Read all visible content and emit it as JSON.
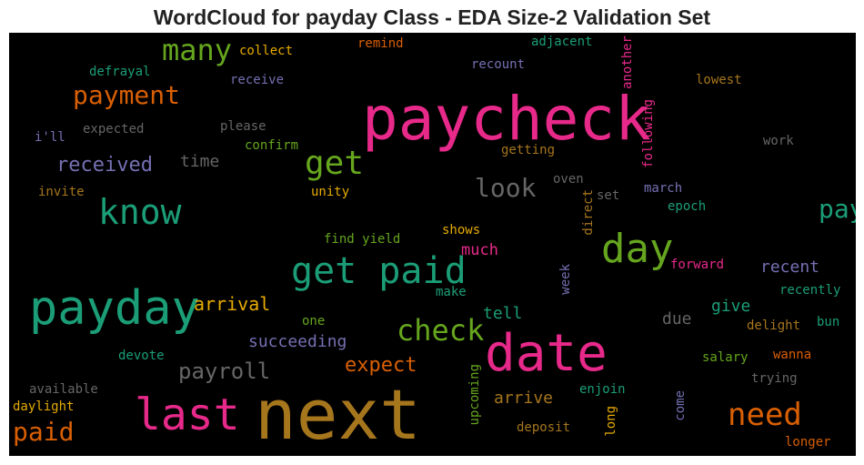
{
  "title": "WordCloud for payday Class - EDA Size-2 Validation Set",
  "colors": {
    "pink": "#e7298a",
    "gold": "#a6761d",
    "green": "#1b9e77",
    "olive": "#66a61e",
    "orange": "#d95f02",
    "purple": "#7570b3",
    "yellow": "#e6ab02",
    "gray": "#666666"
  },
  "words": [
    {
      "text": "paycheck",
      "color": "#e7298a"
    },
    {
      "text": "next",
      "color": "#a6761d"
    },
    {
      "text": "date",
      "color": "#e7298a"
    },
    {
      "text": "payday",
      "color": "#1b9e77"
    },
    {
      "text": "last",
      "color": "#e7298a"
    },
    {
      "text": "get paid",
      "color": "#1b9e77"
    },
    {
      "text": "day",
      "color": "#66a61e"
    },
    {
      "text": "know",
      "color": "#1b9e77"
    },
    {
      "text": "get",
      "color": "#66a61e"
    },
    {
      "text": "need",
      "color": "#d95f02"
    },
    {
      "text": "check",
      "color": "#66a61e"
    },
    {
      "text": "many",
      "color": "#66a61e"
    },
    {
      "text": "payment",
      "color": "#d95f02"
    },
    {
      "text": "paid",
      "color": "#d95f02"
    },
    {
      "text": "look",
      "color": "#666666"
    },
    {
      "text": "pay",
      "color": "#1b9e77"
    },
    {
      "text": "payroll",
      "color": "#666666"
    },
    {
      "text": "received",
      "color": "#7570b3"
    },
    {
      "text": "expect",
      "color": "#d95f02"
    },
    {
      "text": "arrival",
      "color": "#e6ab02"
    },
    {
      "text": "succeeding",
      "color": "#7570b3"
    },
    {
      "text": "time",
      "color": "#666666"
    },
    {
      "text": "arrive",
      "color": "#a6761d"
    },
    {
      "text": "tell",
      "color": "#1b9e77"
    },
    {
      "text": "give",
      "color": "#1b9e77"
    },
    {
      "text": "due",
      "color": "#666666"
    },
    {
      "text": "recent",
      "color": "#7570b3"
    },
    {
      "text": "much",
      "color": "#e7298a"
    },
    {
      "text": "collect",
      "color": "#e6ab02"
    },
    {
      "text": "remind",
      "color": "#d95f02"
    },
    {
      "text": "adjacent",
      "color": "#1b9e77"
    },
    {
      "text": "another",
      "color": "#e7298a"
    },
    {
      "text": "recount",
      "color": "#7570b3"
    },
    {
      "text": "defrayal",
      "color": "#1b9e77"
    },
    {
      "text": "receive",
      "color": "#7570b3"
    },
    {
      "text": "lowest",
      "color": "#a6761d"
    },
    {
      "text": "expected",
      "color": "#666666"
    },
    {
      "text": "please",
      "color": "#666666"
    },
    {
      "text": "i'll",
      "color": "#7570b3"
    },
    {
      "text": "confirm",
      "color": "#66a61e"
    },
    {
      "text": "getting",
      "color": "#a6761d"
    },
    {
      "text": "following",
      "color": "#e7298a"
    },
    {
      "text": "work",
      "color": "#666666"
    },
    {
      "text": "oven",
      "color": "#666666"
    },
    {
      "text": "invite",
      "color": "#a6761d"
    },
    {
      "text": "unity",
      "color": "#e6ab02"
    },
    {
      "text": "direct",
      "color": "#a6761d"
    },
    {
      "text": "set",
      "color": "#666666"
    },
    {
      "text": "march",
      "color": "#7570b3"
    },
    {
      "text": "epoch",
      "color": "#1b9e77"
    },
    {
      "text": "shows",
      "color": "#e6ab02"
    },
    {
      "text": "find yield",
      "color": "#66a61e"
    },
    {
      "text": "forward",
      "color": "#e7298a"
    },
    {
      "text": "week",
      "color": "#7570b3"
    },
    {
      "text": "make",
      "color": "#1b9e77"
    },
    {
      "text": "recently",
      "color": "#1b9e77"
    },
    {
      "text": "one",
      "color": "#66a61e"
    },
    {
      "text": "delight",
      "color": "#a6761d"
    },
    {
      "text": "bun",
      "color": "#1b9e77"
    },
    {
      "text": "devote",
      "color": "#1b9e77"
    },
    {
      "text": "salary",
      "color": "#66a61e"
    },
    {
      "text": "wanna",
      "color": "#d95f02"
    },
    {
      "text": "available",
      "color": "#666666"
    },
    {
      "text": "upcoming",
      "color": "#66a61e"
    },
    {
      "text": "trying",
      "color": "#666666"
    },
    {
      "text": "enjoin",
      "color": "#1b9e77"
    },
    {
      "text": "daylight",
      "color": "#e6ab02"
    },
    {
      "text": "come",
      "color": "#7570b3"
    },
    {
      "text": "long",
      "color": "#e6ab02"
    },
    {
      "text": "deposit",
      "color": "#a6761d"
    },
    {
      "text": "longer",
      "color": "#d95f02"
    }
  ]
}
